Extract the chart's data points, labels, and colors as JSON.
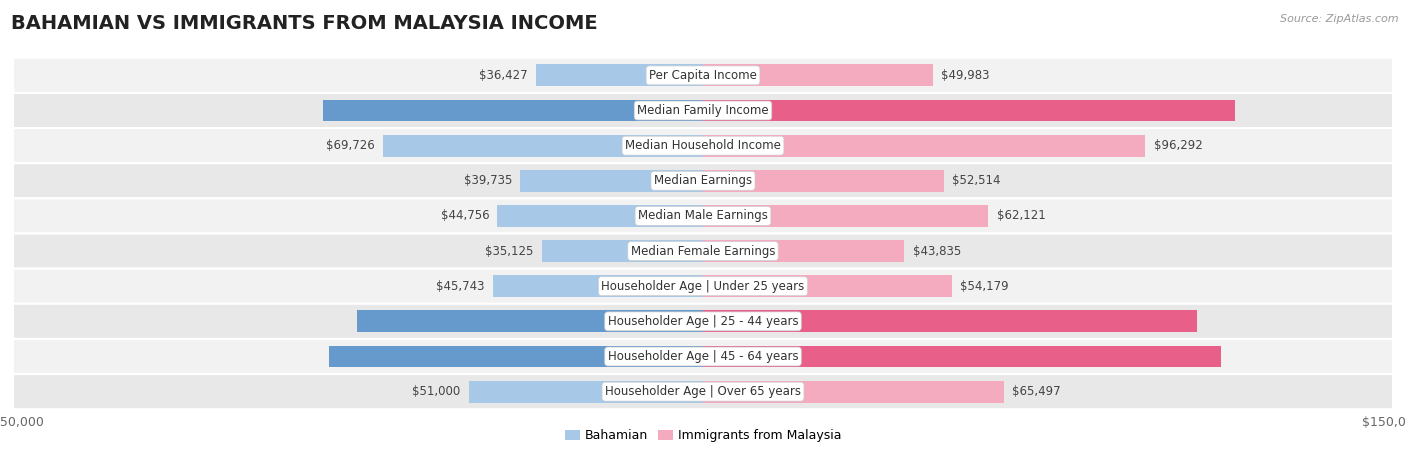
{
  "title": "BAHAMIAN VS IMMIGRANTS FROM MALAYSIA INCOME",
  "source": "Source: ZipAtlas.com",
  "categories": [
    "Per Capita Income",
    "Median Family Income",
    "Median Household Income",
    "Median Earnings",
    "Median Male Earnings",
    "Median Female Earnings",
    "Householder Age | Under 25 years",
    "Householder Age | 25 - 44 years",
    "Householder Age | 45 - 64 years",
    "Householder Age | Over 65 years"
  ],
  "bahamian": [
    36427,
    82631,
    69726,
    39735,
    44756,
    35125,
    45743,
    75395,
    81369,
    51000
  ],
  "malaysia": [
    49983,
    115880,
    96292,
    52514,
    62121,
    43835,
    54179,
    107650,
    112796,
    65497
  ],
  "max_val": 150000,
  "bahamian_color_light": "#A8C8E8",
  "bahamian_color_dark": "#6699CC",
  "malaysia_color_light": "#F4AABF",
  "malaysia_color_dark": "#E8608A",
  "row_bg_light": "#F2F2F2",
  "row_bg_mid": "#E8E8E8",
  "bar_height": 0.62,
  "title_fontsize": 14,
  "value_fontsize": 8.5,
  "category_fontsize": 8.5,
  "legend_fontsize": 9,
  "axis_fontsize": 9,
  "bah_dark_threshold": 0.5,
  "mal_dark_threshold": 0.68
}
